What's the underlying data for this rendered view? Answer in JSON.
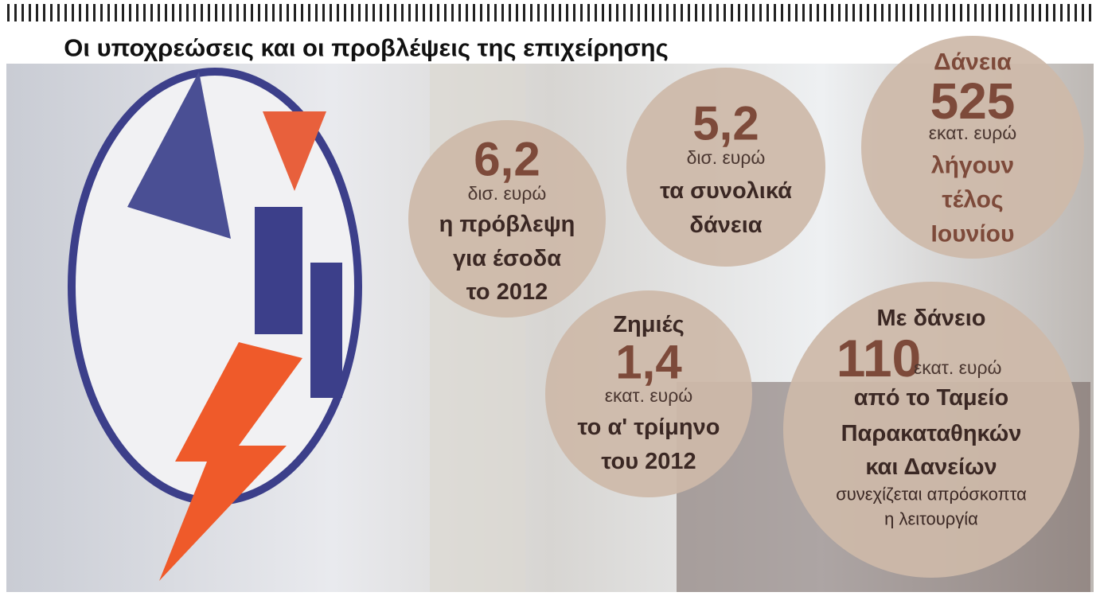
{
  "title": "Οι υποχρεώσεις και οι προβλέψεις της επιχείρησης",
  "bubbles": [
    {
      "number": "6,2",
      "unit": "δισ. ευρώ",
      "lines": [
        "η πρόβλεψη",
        "για έσοδα",
        "το 2012"
      ]
    },
    {
      "number": "5,2",
      "unit": "δισ. ευρώ",
      "lines": [
        "τα συνολικά",
        "δάνεια"
      ]
    },
    {
      "heading": "Δάνεια",
      "number": "525",
      "unit": "εκατ. ευρώ",
      "lines": [
        "λήγουν",
        "τέλος",
        "Ιουνίου"
      ]
    },
    {
      "heading": "Ζημιές",
      "number": "1,4",
      "unit": "εκατ. ευρώ",
      "lines": [
        "το α' τρίμηνο",
        "του 2012"
      ]
    },
    {
      "heading": "Με δάνειο",
      "number": "110",
      "unit": "εκατ. ευρώ",
      "lines": [
        "από το Ταμείο",
        "Παρακαταθηκών",
        "και Δανείων"
      ],
      "note": [
        "συνεχίζεται απρόσκοπτα",
        "η λειτουργία"
      ]
    }
  ]
}
